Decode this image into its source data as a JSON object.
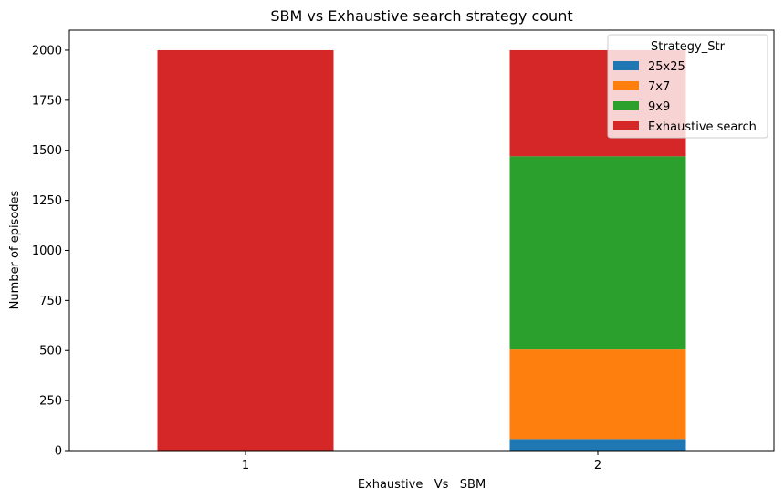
{
  "chart_data": {
    "type": "bar",
    "stacked": true,
    "title": "SBM vs Exhaustive search strategy count",
    "xlabel": "Exhaustive   Vs   SBM",
    "ylabel": "Number of episodes",
    "categories": [
      "1",
      "2"
    ],
    "ylim": [
      0,
      2100
    ],
    "yticks": [
      0,
      250,
      500,
      750,
      1000,
      1250,
      1500,
      1750,
      2000
    ],
    "grid": false,
    "legend": {
      "title": "Strategy_Str",
      "placement": "top-right"
    },
    "series": [
      {
        "name": "25x25",
        "color": "#1f77b4",
        "values": [
          0,
          58
        ]
      },
      {
        "name": "7x7",
        "color": "#ff7f0e",
        "values": [
          0,
          447
        ]
      },
      {
        "name": "9x9",
        "color": "#2ca02c",
        "values": [
          0,
          965
        ]
      },
      {
        "name": "Exhaustive search",
        "color": "#d62728",
        "values": [
          2000,
          530
        ]
      }
    ]
  }
}
